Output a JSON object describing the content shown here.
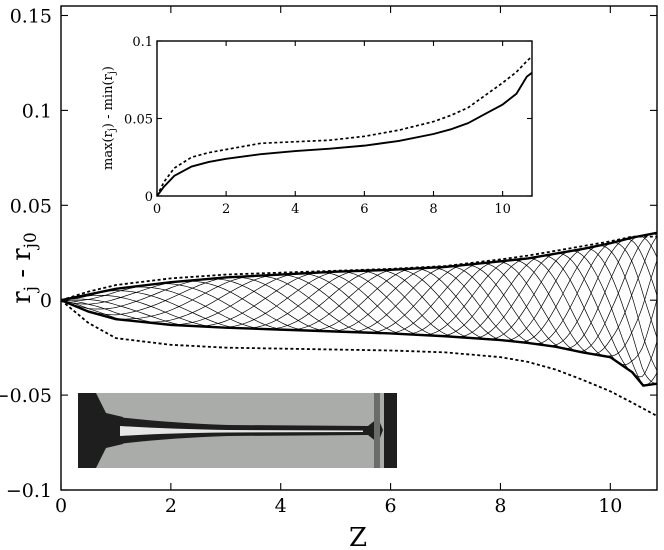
{
  "chart_data": [
    {
      "type": "line",
      "xlabel": "Z",
      "ylabel_main": "r",
      "ylabel_sub": "j",
      "ylabel_sep": " - ",
      "ylabel_main2": "r",
      "ylabel_sub2": "j0",
      "xlim": [
        0,
        10.85
      ],
      "ylim": [
        -0.1,
        0.155
      ],
      "xticks": [
        0,
        2,
        4,
        6,
        8,
        10
      ],
      "xtick_labels": [
        "0",
        "2",
        "4",
        "6",
        "8",
        "10"
      ],
      "yticks": [
        -0.1,
        -0.05,
        0,
        0.05,
        0.1,
        0.15
      ],
      "ytick_labels": [
        "−0.1",
        "−0.05",
        "0",
        "0.05",
        "0.1",
        "0.15"
      ],
      "grid": false,
      "series": [
        {
          "style": "solid-thick",
          "x": [
            0,
            0.5,
            1,
            2,
            3,
            4,
            5,
            6,
            7,
            8,
            8.5,
            9,
            9.5,
            10,
            10.4,
            10.85
          ],
          "y": [
            0,
            0.003,
            0.006,
            0.0095,
            0.012,
            0.0135,
            0.015,
            0.016,
            0.0175,
            0.0205,
            0.022,
            0.0245,
            0.027,
            0.03,
            0.033,
            0.0355
          ]
        },
        {
          "style": "solid-thick",
          "x": [
            0,
            0.5,
            1,
            2,
            3,
            4,
            5,
            6,
            7,
            8,
            8.5,
            9,
            9.5,
            10,
            10.4,
            10.6,
            10.85
          ],
          "y": [
            0,
            -0.006,
            -0.01,
            -0.013,
            -0.0145,
            -0.0155,
            -0.0165,
            -0.0175,
            -0.019,
            -0.021,
            -0.0225,
            -0.0245,
            -0.0275,
            -0.03,
            -0.038,
            -0.045,
            -0.044
          ]
        },
        {
          "style": "dashed",
          "x": [
            0,
            0.5,
            1,
            2,
            3,
            4,
            5,
            6,
            7,
            8,
            8.5,
            9,
            9.5,
            10,
            10.4,
            10.85
          ],
          "y": [
            0,
            0.0045,
            0.008,
            0.0115,
            0.0135,
            0.0145,
            0.0155,
            0.0165,
            0.018,
            0.0215,
            0.0235,
            0.026,
            0.0285,
            0.031,
            0.0335,
            0.0335
          ]
        },
        {
          "style": "dashed",
          "x": [
            0,
            0.5,
            1,
            2,
            3,
            4,
            5,
            6,
            7,
            8,
            8.5,
            9,
            9.5,
            10,
            10.4,
            10.85
          ],
          "y": [
            0,
            -0.012,
            -0.02,
            -0.0235,
            -0.025,
            -0.0255,
            -0.026,
            -0.0265,
            -0.0275,
            -0.03,
            -0.0325,
            -0.0365,
            -0.042,
            -0.048,
            -0.054,
            -0.061
          ]
        }
      ],
      "oscillating_lines": {
        "count": 11,
        "x_start": 0,
        "x_end": 10.85
      }
    },
    {
      "type": "line",
      "xlabel": "",
      "ylabel": "max(rⱼ) - min(rⱼ)",
      "ylabel_parts": [
        "max(r",
        "j",
        ") - min(r",
        "j",
        ")"
      ],
      "xlim": [
        0,
        10.85
      ],
      "ylim": [
        0,
        0.1
      ],
      "xticks": [
        0,
        2,
        4,
        6,
        8,
        10
      ],
      "xtick_labels": [
        "0",
        "2",
        "4",
        "6",
        "8",
        "10"
      ],
      "yticks": [
        0,
        0.05,
        0.1
      ],
      "ytick_labels": [
        "0",
        "0.05",
        "0.1"
      ],
      "grid": false,
      "series": [
        {
          "style": "solid",
          "x": [
            0,
            0.2,
            0.5,
            1,
            1.5,
            2,
            3,
            4,
            5,
            6,
            7,
            8,
            8.5,
            9,
            9.5,
            10,
            10.4,
            10.7,
            10.85
          ],
          "y": [
            0,
            0.006,
            0.013,
            0.019,
            0.022,
            0.024,
            0.027,
            0.029,
            0.0305,
            0.0325,
            0.0355,
            0.04,
            0.043,
            0.047,
            0.053,
            0.059,
            0.066,
            0.077,
            0.0795
          ]
        },
        {
          "style": "dashed",
          "x": [
            0,
            0.2,
            0.5,
            1,
            1.5,
            2,
            3,
            4,
            5,
            6,
            7,
            8,
            8.5,
            9,
            9.5,
            10,
            10.4,
            10.7,
            10.85
          ],
          "y": [
            0,
            0.009,
            0.018,
            0.025,
            0.028,
            0.03,
            0.034,
            0.035,
            0.036,
            0.0385,
            0.0425,
            0.048,
            0.052,
            0.057,
            0.065,
            0.073,
            0.08,
            0.087,
            0.09
          ]
        }
      ]
    }
  ],
  "photo": {
    "background": "#a9aca9",
    "dark": "#1e1e1e",
    "highlight": "#e6e6e6"
  }
}
